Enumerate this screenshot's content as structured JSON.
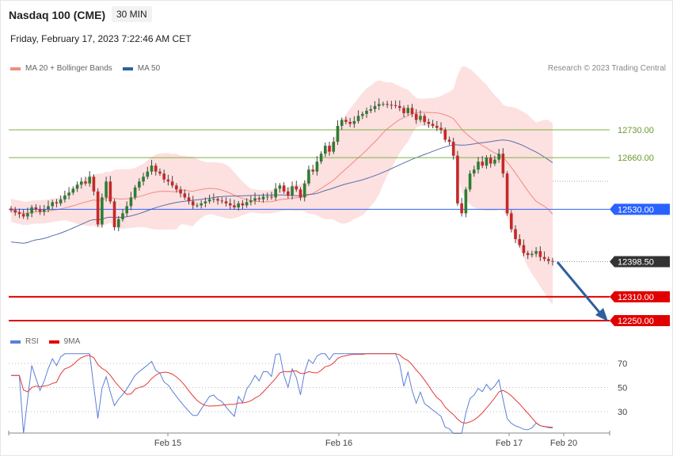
{
  "header": {
    "title": "Nasdaq 100 (CME)",
    "timeframe": "30 MIN",
    "datetime": "Friday, February 17, 2023 7:22:46 AM CET",
    "credit": "Research © 2023 Trading Central"
  },
  "legend_price": [
    {
      "name": "MA 20 + Bollinger Bands",
      "color": "#f28b82"
    },
    {
      "name": "MA 50",
      "color": "#2f5f9e"
    }
  ],
  "legend_rsi": [
    {
      "name": "RSI",
      "color": "#5b7fd8"
    },
    {
      "name": "9MA",
      "color": "#e53935"
    }
  ],
  "chart_data": [
    {
      "type": "candlestick",
      "title": "Nasdaq 100 (CME)",
      "x_ticks": [
        "Feb 15",
        "Feb 16",
        "Feb 17",
        "Feb 20"
      ],
      "ylim": [
        12230,
        12850
      ],
      "levels": [
        {
          "label": "12730.00",
          "value": 12730,
          "style": "resistance",
          "color": "#7cb342"
        },
        {
          "label": "12660.00",
          "value": 12660,
          "style": "resistance",
          "color": "#7cb342"
        },
        {
          "label": "12530.00",
          "value": 12530,
          "style": "pivot",
          "color": "#2962ff"
        },
        {
          "label": "12398.50",
          "value": 12398.5,
          "style": "last",
          "color": "#333333"
        },
        {
          "label": "12310.00",
          "value": 12310,
          "style": "support",
          "color": "#e00000"
        },
        {
          "label": "12250.00",
          "value": 12250,
          "style": "support",
          "color": "#e00000"
        }
      ],
      "closes": [
        12528,
        12522,
        12518,
        12512,
        12520,
        12535,
        12530,
        12524,
        12529,
        12538,
        12548,
        12545,
        12555,
        12565,
        12572,
        12582,
        12592,
        12600,
        12595,
        12612,
        12575,
        12492,
        12560,
        12600,
        12550,
        12485,
        12505,
        12520,
        12538,
        12560,
        12585,
        12600,
        12612,
        12625,
        12640,
        12625,
        12620,
        12605,
        12600,
        12590,
        12580,
        12570,
        12560,
        12550,
        12540,
        12540,
        12545,
        12550,
        12555,
        12556,
        12552,
        12550,
        12545,
        12540,
        12535,
        12545,
        12540,
        12548,
        12552,
        12558,
        12555,
        12562,
        12562,
        12560,
        12582,
        12590,
        12575,
        12565,
        12588,
        12580,
        12560,
        12595,
        12630,
        12625,
        12650,
        12670,
        12690,
        12675,
        12700,
        12740,
        12755,
        12750,
        12745,
        12752,
        12765,
        12770,
        12778,
        12782,
        12790,
        12795,
        12795,
        12793,
        12792,
        12790,
        12785,
        12772,
        12785,
        12770,
        12755,
        12765,
        12750,
        12745,
        12740,
        12735,
        12730,
        12705,
        12700,
        12665,
        12545,
        12520,
        12580,
        12620,
        12630,
        12650,
        12640,
        12660,
        12645,
        12655,
        12670,
        12620,
        12520,
        12480,
        12455,
        12440,
        12420,
        12415,
        12418,
        12425,
        12410,
        12405,
        12400,
        12398.5
      ],
      "ma50_note": "MA 50 line",
      "bollinger_note": "MA 20 + Bollinger Bands"
    },
    {
      "type": "line",
      "title": "RSI",
      "ylim": [
        10,
        80
      ],
      "y_ticks": [
        70,
        50,
        30
      ],
      "series": [
        {
          "name": "RSI"
        },
        {
          "name": "9MA"
        }
      ]
    }
  ]
}
